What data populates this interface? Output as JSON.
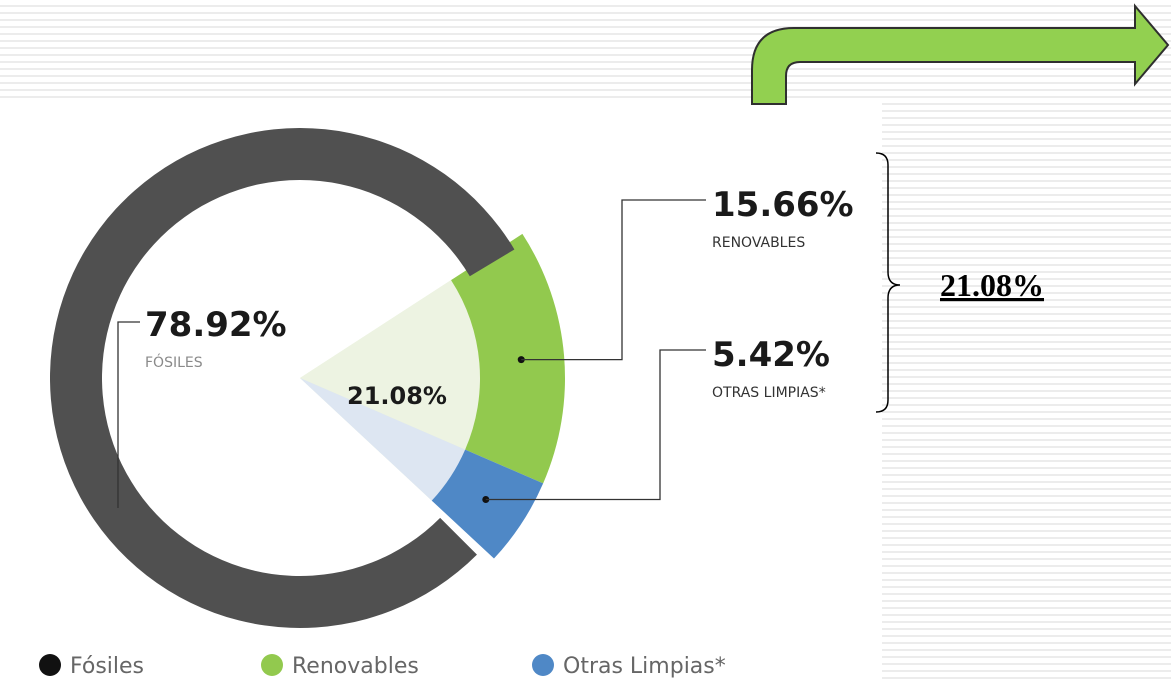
{
  "chart_data": {
    "type": "pie",
    "categories": [
      "Fósiles",
      "Renovables",
      "Otras Limpias*"
    ],
    "values": [
      78.92,
      15.66,
      5.42
    ],
    "value_labels": [
      "78.92%",
      "15.66%",
      "5.42%"
    ],
    "slice_labels": [
      "FÓSILES",
      "RENOVABLES",
      "OTRAS LIMPIAS*"
    ],
    "colors": [
      "#505050",
      "#92c94e",
      "#4f88c6"
    ],
    "legend_colors": [
      "#111111",
      "#92c94e",
      "#4f88c6"
    ],
    "group_total": {
      "value": 21.08,
      "label": "21.08%"
    }
  }
}
